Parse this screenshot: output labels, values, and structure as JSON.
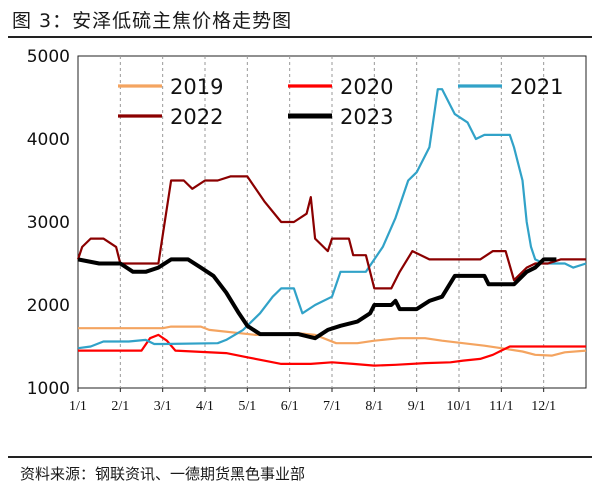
{
  "header": {
    "title": "图 3：安泽低硫主焦价格走势图"
  },
  "footer": {
    "source": "资料来源：钢联资讯、一德期货黑色事业部"
  },
  "chart_data": {
    "type": "line",
    "x_unit": "month (fractional, 1 = Jan 1)",
    "xlim": [
      1,
      13
    ],
    "ylim": [
      1000,
      5000
    ],
    "yticks": [
      1000,
      2000,
      3000,
      4000,
      5000
    ],
    "xticks": [
      "1/1",
      "2/1",
      "3/1",
      "4/1",
      "5/1",
      "6/1",
      "7/1",
      "8/1",
      "9/1",
      "10/1",
      "11/1",
      "12/1"
    ],
    "grid": "vertical-dashed",
    "legend_position": "top",
    "series": [
      {
        "name": "2019",
        "color": "#f4a460",
        "width": 2.2,
        "points": [
          [
            1.0,
            1720
          ],
          [
            3.0,
            1720
          ],
          [
            3.2,
            1740
          ],
          [
            3.9,
            1740
          ],
          [
            4.1,
            1700
          ],
          [
            5.2,
            1640
          ],
          [
            5.9,
            1650
          ],
          [
            6.2,
            1660
          ],
          [
            6.6,
            1640
          ],
          [
            7.1,
            1540
          ],
          [
            7.6,
            1540
          ],
          [
            8.0,
            1570
          ],
          [
            8.6,
            1600
          ],
          [
            9.2,
            1600
          ],
          [
            9.6,
            1570
          ],
          [
            10.1,
            1540
          ],
          [
            10.6,
            1510
          ],
          [
            11.0,
            1480
          ],
          [
            11.5,
            1440
          ],
          [
            11.8,
            1400
          ],
          [
            12.2,
            1390
          ],
          [
            12.5,
            1430
          ],
          [
            13.0,
            1450
          ]
        ]
      },
      {
        "name": "2020",
        "color": "#ff0000",
        "width": 2.2,
        "points": [
          [
            1.0,
            1450
          ],
          [
            2.5,
            1450
          ],
          [
            2.7,
            1600
          ],
          [
            2.9,
            1640
          ],
          [
            3.1,
            1570
          ],
          [
            3.3,
            1450
          ],
          [
            4.5,
            1420
          ],
          [
            5.0,
            1370
          ],
          [
            5.5,
            1320
          ],
          [
            5.8,
            1290
          ],
          [
            6.5,
            1290
          ],
          [
            7.0,
            1310
          ],
          [
            7.5,
            1290
          ],
          [
            8.0,
            1270
          ],
          [
            8.5,
            1280
          ],
          [
            9.2,
            1300
          ],
          [
            9.8,
            1310
          ],
          [
            10.1,
            1330
          ],
          [
            10.5,
            1350
          ],
          [
            10.8,
            1400
          ],
          [
            11.0,
            1450
          ],
          [
            11.2,
            1500
          ],
          [
            13.0,
            1500
          ]
        ]
      },
      {
        "name": "2021",
        "color": "#31a2c8",
        "width": 2.2,
        "points": [
          [
            1.0,
            1480
          ],
          [
            1.3,
            1500
          ],
          [
            1.6,
            1560
          ],
          [
            2.2,
            1560
          ],
          [
            2.6,
            1580
          ],
          [
            2.8,
            1530
          ],
          [
            3.0,
            1530
          ],
          [
            4.3,
            1540
          ],
          [
            4.5,
            1580
          ],
          [
            4.9,
            1700
          ],
          [
            5.3,
            1900
          ],
          [
            5.6,
            2100
          ],
          [
            5.8,
            2200
          ],
          [
            6.1,
            2200
          ],
          [
            6.2,
            2050
          ],
          [
            6.3,
            1900
          ],
          [
            6.6,
            2000
          ],
          [
            7.0,
            2100
          ],
          [
            7.2,
            2400
          ],
          [
            7.8,
            2400
          ],
          [
            8.0,
            2550
          ],
          [
            8.2,
            2700
          ],
          [
            8.5,
            3050
          ],
          [
            8.8,
            3500
          ],
          [
            9.0,
            3600
          ],
          [
            9.3,
            3900
          ],
          [
            9.5,
            4600
          ],
          [
            9.6,
            4600
          ],
          [
            9.8,
            4400
          ],
          [
            9.9,
            4300
          ],
          [
            10.2,
            4200
          ],
          [
            10.4,
            4000
          ],
          [
            10.6,
            4050
          ],
          [
            10.8,
            4050
          ],
          [
            11.0,
            4050
          ],
          [
            11.2,
            4050
          ],
          [
            11.3,
            3900
          ],
          [
            11.5,
            3500
          ],
          [
            11.6,
            3000
          ],
          [
            11.7,
            2700
          ],
          [
            11.8,
            2550
          ],
          [
            12.0,
            2500
          ],
          [
            12.3,
            2500
          ],
          [
            12.5,
            2500
          ],
          [
            12.7,
            2450
          ],
          [
            13.0,
            2500
          ]
        ]
      },
      {
        "name": "2022",
        "color": "#8b0000",
        "width": 2.2,
        "points": [
          [
            1.0,
            2550
          ],
          [
            1.1,
            2700
          ],
          [
            1.3,
            2800
          ],
          [
            1.6,
            2800
          ],
          [
            1.9,
            2700
          ],
          [
            2.0,
            2500
          ],
          [
            2.5,
            2500
          ],
          [
            2.9,
            2500
          ],
          [
            3.2,
            3500
          ],
          [
            3.5,
            3500
          ],
          [
            3.7,
            3400
          ],
          [
            4.0,
            3500
          ],
          [
            4.3,
            3500
          ],
          [
            4.6,
            3550
          ],
          [
            5.0,
            3550
          ],
          [
            5.4,
            3250
          ],
          [
            5.8,
            3000
          ],
          [
            6.1,
            3000
          ],
          [
            6.4,
            3100
          ],
          [
            6.5,
            3300
          ],
          [
            6.6,
            2800
          ],
          [
            6.9,
            2650
          ],
          [
            7.0,
            2800
          ],
          [
            7.4,
            2800
          ],
          [
            7.5,
            2600
          ],
          [
            7.8,
            2600
          ],
          [
            8.0,
            2200
          ],
          [
            8.4,
            2200
          ],
          [
            8.6,
            2400
          ],
          [
            8.9,
            2650
          ],
          [
            9.3,
            2550
          ],
          [
            9.6,
            2550
          ],
          [
            9.8,
            2550
          ],
          [
            10.1,
            2550
          ],
          [
            10.5,
            2550
          ],
          [
            10.8,
            2650
          ],
          [
            11.1,
            2650
          ],
          [
            11.3,
            2300
          ],
          [
            11.6,
            2450
          ],
          [
            11.8,
            2500
          ],
          [
            12.1,
            2500
          ],
          [
            12.4,
            2550
          ],
          [
            13.0,
            2550
          ]
        ]
      },
      {
        "name": "2023",
        "color": "#000000",
        "width": 4,
        "points": [
          [
            1.0,
            2550
          ],
          [
            1.5,
            2500
          ],
          [
            2.0,
            2500
          ],
          [
            2.3,
            2400
          ],
          [
            2.6,
            2400
          ],
          [
            2.9,
            2450
          ],
          [
            3.2,
            2550
          ],
          [
            3.6,
            2550
          ],
          [
            3.9,
            2450
          ],
          [
            4.2,
            2350
          ],
          [
            4.5,
            2150
          ],
          [
            4.8,
            1900
          ],
          [
            5.0,
            1750
          ],
          [
            5.3,
            1650
          ],
          [
            5.6,
            1650
          ],
          [
            5.9,
            1650
          ],
          [
            6.2,
            1650
          ],
          [
            6.6,
            1600
          ],
          [
            6.9,
            1700
          ],
          [
            7.2,
            1750
          ],
          [
            7.6,
            1800
          ],
          [
            7.9,
            1900
          ],
          [
            8.0,
            2000
          ],
          [
            8.4,
            2000
          ],
          [
            8.5,
            2050
          ],
          [
            8.6,
            1950
          ],
          [
            9.0,
            1950
          ],
          [
            9.3,
            2050
          ],
          [
            9.6,
            2100
          ],
          [
            9.9,
            2350
          ],
          [
            10.3,
            2350
          ],
          [
            10.6,
            2350
          ],
          [
            10.7,
            2250
          ],
          [
            11.0,
            2250
          ],
          [
            11.3,
            2250
          ],
          [
            11.6,
            2400
          ],
          [
            11.8,
            2450
          ],
          [
            12.0,
            2550
          ],
          [
            12.3,
            2550
          ]
        ]
      }
    ]
  }
}
